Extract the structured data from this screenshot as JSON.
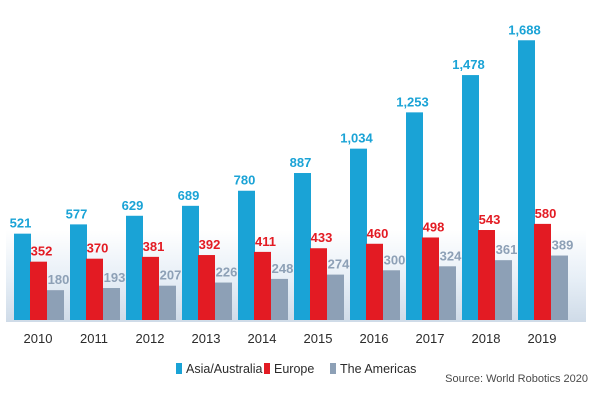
{
  "chart_data": {
    "type": "bar",
    "title": "",
    "xlabel": "",
    "ylabel": "",
    "categories": [
      "2010",
      "2011",
      "2012",
      "2013",
      "2014",
      "2015",
      "2016",
      "2017",
      "2018",
      "2019"
    ],
    "series": [
      {
        "name": "Asia/Australia",
        "color": "#1aa3d6",
        "values": [
          521,
          577,
          629,
          689,
          780,
          887,
          1034,
          1253,
          1478,
          1688
        ]
      },
      {
        "name": "Europe",
        "color": "#e31b23",
        "values": [
          352,
          370,
          381,
          392,
          411,
          433,
          460,
          498,
          543,
          580
        ]
      },
      {
        "name": "The Americas",
        "color": "#8da0b6",
        "values": [
          180,
          193,
          207,
          226,
          248,
          274,
          300,
          324,
          361,
          389
        ]
      }
    ],
    "value_labels": {
      "Asia/Australia": [
        "521",
        "577",
        "629",
        "689",
        "780",
        "887",
        "1,034",
        "1,253",
        "1,478",
        "1,688"
      ],
      "Europe": [
        "352",
        "370",
        "381",
        "392",
        "411",
        "433",
        "460",
        "498",
        "543",
        "580"
      ],
      "The Americas": [
        "180",
        "193",
        "207",
        "226",
        "248",
        "274",
        "300",
        "324",
        "361",
        "389"
      ]
    },
    "ylim": [
      0,
      1750
    ],
    "grid": false,
    "legend_position": "bottom",
    "source": "Source: World Robotics 2020"
  }
}
